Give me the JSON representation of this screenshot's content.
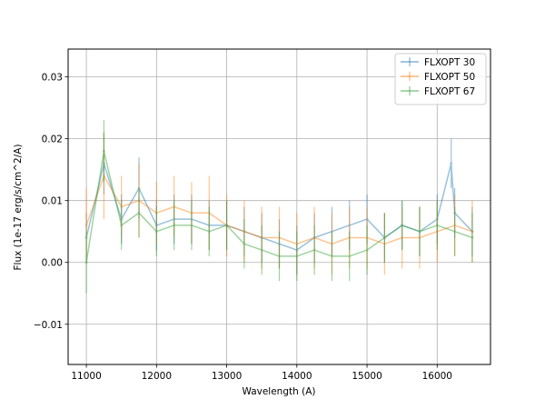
{
  "chart_data": {
    "type": "line",
    "title": "",
    "xlabel": "Wavelength (A)",
    "ylabel": "Flux (1e-17 erg/s/cm^2/A)",
    "xlim": [
      10740,
      16760
    ],
    "ylim": [
      -0.0165,
      0.0345
    ],
    "xticks": [
      11000,
      12000,
      13000,
      14000,
      15000,
      16000
    ],
    "xtick_labels": [
      "11000",
      "12000",
      "13000",
      "14000",
      "15000",
      "16000"
    ],
    "yticks": [
      -0.01,
      0.0,
      0.01,
      0.02,
      0.03
    ],
    "ytick_labels": [
      "−0.01",
      "0.00",
      "0.01",
      "0.02",
      "0.03"
    ],
    "grid": true,
    "legend_position": "top-right",
    "series_style": "line with vertical error bars, semi-transparent",
    "series": [
      {
        "name": "FLXOPT 30",
        "color": "#1f77b4",
        "x": [
          11000,
          11250,
          11500,
          11750,
          12000,
          12250,
          12500,
          12750,
          13000,
          13250,
          13500,
          13750,
          14000,
          14250,
          14500,
          14750,
          15000,
          15250,
          15500,
          15750,
          16000,
          16200,
          16250,
          16500
        ],
        "y": [
          0.004,
          0.016,
          0.007,
          0.012,
          0.006,
          0.007,
          0.007,
          0.006,
          0.006,
          0.005,
          0.004,
          0.003,
          0.002,
          0.004,
          0.005,
          0.006,
          0.007,
          0.004,
          0.006,
          0.005,
          0.007,
          0.016,
          0.008,
          0.005
        ],
        "err": [
          0.004,
          0.005,
          0.004,
          0.005,
          0.004,
          0.004,
          0.004,
          0.004,
          0.004,
          0.004,
          0.004,
          0.004,
          0.004,
          0.004,
          0.004,
          0.004,
          0.004,
          0.004,
          0.004,
          0.004,
          0.004,
          0.004,
          0.004,
          0.004
        ]
      },
      {
        "name": "FLXOPT 50",
        "color": "#ff7f0e",
        "x": [
          11000,
          11250,
          11500,
          11750,
          12000,
          12250,
          12500,
          12750,
          13000,
          13250,
          13500,
          13750,
          14000,
          14250,
          14500,
          14750,
          15000,
          15250,
          15500,
          15750,
          16000,
          16250,
          16500
        ],
        "y": [
          0.006,
          0.014,
          0.009,
          0.01,
          0.008,
          0.009,
          0.008,
          0.008,
          0.006,
          0.005,
          0.004,
          0.004,
          0.003,
          0.004,
          0.003,
          0.004,
          0.004,
          0.003,
          0.004,
          0.004,
          0.005,
          0.006,
          0.005
        ],
        "err": [
          0.006,
          0.007,
          0.005,
          0.006,
          0.005,
          0.005,
          0.005,
          0.006,
          0.005,
          0.005,
          0.005,
          0.005,
          0.005,
          0.005,
          0.005,
          0.005,
          0.005,
          0.005,
          0.005,
          0.005,
          0.005,
          0.005,
          0.005
        ]
      },
      {
        "name": "FLXOPT 67",
        "color": "#2ca02c",
        "x": [
          11000,
          11250,
          11500,
          11750,
          12000,
          12250,
          12500,
          12750,
          13000,
          13250,
          13500,
          13750,
          14000,
          14250,
          14500,
          14750,
          15000,
          15250,
          15500,
          15750,
          16000,
          16250,
          16500
        ],
        "y": [
          0.0,
          0.018,
          0.006,
          0.008,
          0.005,
          0.006,
          0.006,
          0.005,
          0.006,
          0.003,
          0.002,
          0.001,
          0.001,
          0.002,
          0.001,
          0.001,
          0.002,
          0.004,
          0.006,
          0.005,
          0.006,
          0.005,
          0.004
        ],
        "err": [
          0.005,
          0.005,
          0.004,
          0.004,
          0.004,
          0.004,
          0.004,
          0.004,
          0.004,
          0.004,
          0.004,
          0.004,
          0.004,
          0.004,
          0.004,
          0.004,
          0.004,
          0.004,
          0.004,
          0.004,
          0.004,
          0.004,
          0.004
        ]
      }
    ]
  }
}
